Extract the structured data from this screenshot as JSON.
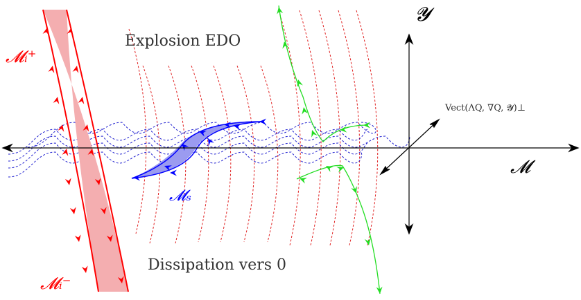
{
  "labels": {
    "explosion": "Explosion EDO",
    "dissipation": "Dissipation vers 0",
    "m_plus": "𝓜ᵢ⁺",
    "m_minus": "𝓜ᵢ⁻",
    "m_s": "𝓜ₛ",
    "y_axis": "𝓨",
    "m_axis": "𝓜",
    "vect": "Vect(ΛQ, ∇Q, 𝓨)⊥"
  },
  "colors": {
    "red": "#ff0000",
    "red_fill": "#f4aeb0",
    "blue": "#0000ff",
    "blue_fill": "#9b9bf0",
    "green": "#22dd22",
    "axis": "#000000"
  },
  "icons": [
    "arrowhead-icon"
  ]
}
